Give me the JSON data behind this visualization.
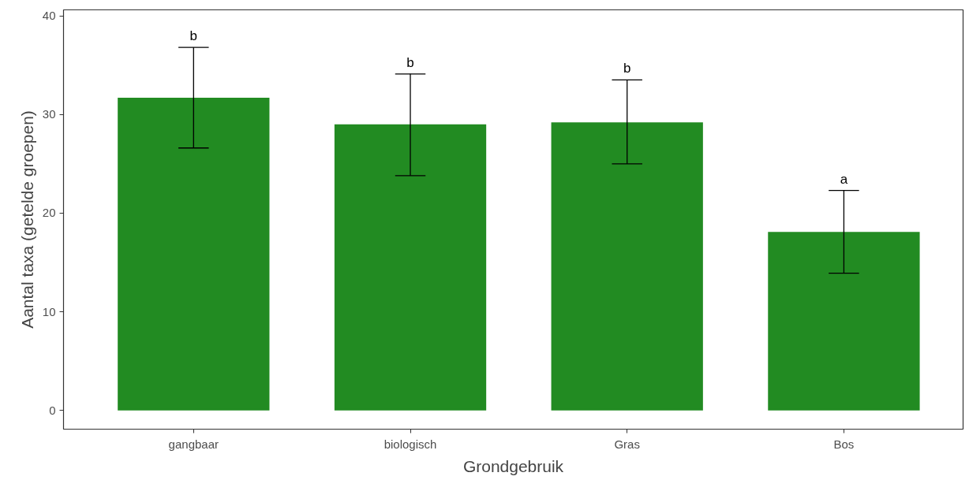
{
  "chart_data": {
    "type": "bar",
    "xlabel": "Grondgebruik",
    "ylabel": "Aantal taxa (getelde groepen)",
    "categories": [
      "gangbaar",
      "biologisch",
      "Gras",
      "Bos"
    ],
    "values": [
      31.7,
      29.0,
      29.2,
      18.1
    ],
    "color": "#228b22",
    "errors": [
      [
        26.6,
        36.8
      ],
      [
        23.8,
        34.1
      ],
      [
        25.0,
        33.5
      ],
      [
        13.9,
        22.3
      ]
    ],
    "ylim": [
      -1.9,
      40.6
    ],
    "yticks": [
      0,
      10,
      20,
      30,
      40
    ],
    "grid": false,
    "annotations": [
      "b",
      "b",
      "b",
      "a"
    ]
  }
}
